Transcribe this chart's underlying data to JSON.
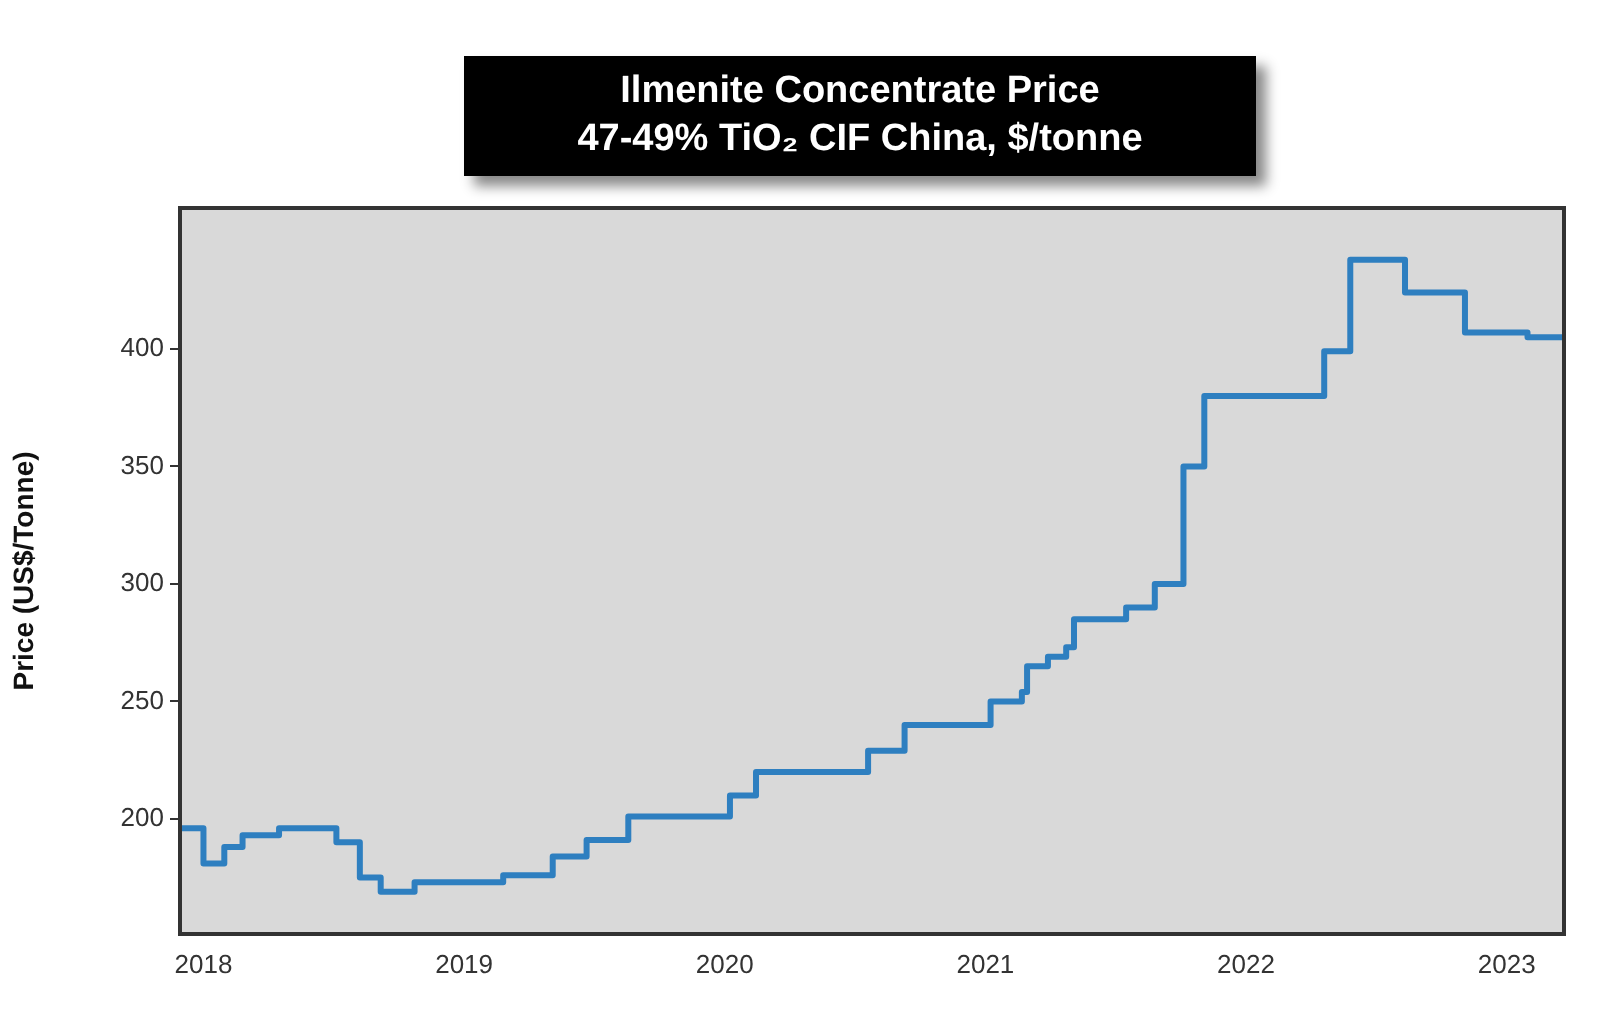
{
  "chart_data": {
    "type": "step",
    "title": "Ilmenite Concentrate Price",
    "subtitle": "47-49% TiO₂ CIF China, $/tonne",
    "ylabel": "Price (US$/Tonne)",
    "x": [
      2017.91,
      2018.0,
      2018.08,
      2018.15,
      2018.29,
      2018.51,
      2018.6,
      2018.68,
      2018.81,
      2019.15,
      2019.34,
      2019.47,
      2019.63,
      2020.02,
      2020.12,
      2020.55,
      2020.69,
      2021.02,
      2021.14,
      2021.16,
      2021.24,
      2021.31,
      2021.34,
      2021.54,
      2021.65,
      2021.76,
      2021.84,
      2022.3,
      2022.4,
      2022.61,
      2022.84,
      2023.08,
      2023.22
    ],
    "series": [
      {
        "color": "#2e7fc0",
        "values": [
          196,
          181,
          188,
          193,
          196,
          190,
          175,
          169,
          173,
          176,
          184,
          191,
          201,
          210,
          220,
          229,
          240,
          250,
          254,
          265,
          269,
          273,
          285,
          290,
          300,
          350,
          380,
          399,
          438,
          424,
          407,
          405,
          405
        ]
      }
    ],
    "xlim": [
      2017.91,
      2023.22
    ],
    "xticks": [
      2018,
      2019,
      2020,
      2021,
      2022,
      2023
    ],
    "ylim": [
      151,
      460
    ],
    "yticks": [
      200,
      250,
      300,
      350,
      400
    ],
    "grid": false,
    "legend": false,
    "marker": "none",
    "line_style": "solid"
  }
}
